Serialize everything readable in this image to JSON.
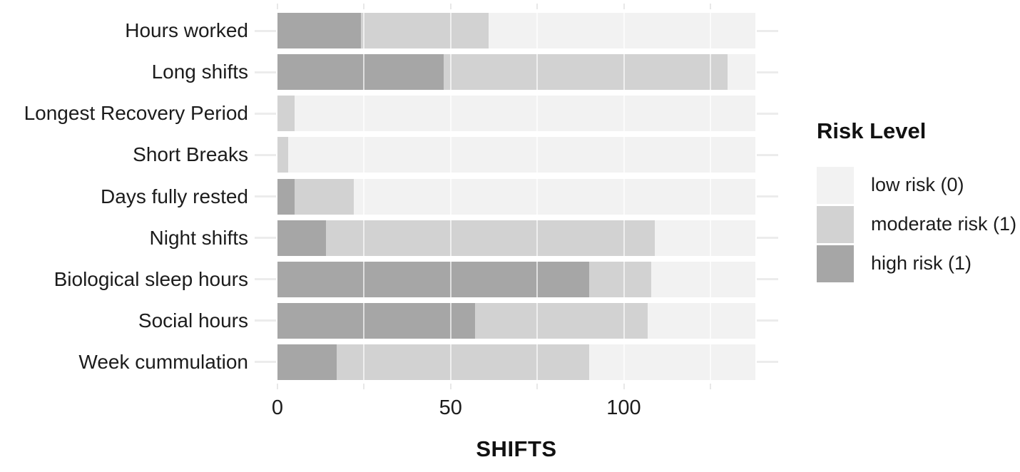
{
  "chart_data": {
    "type": "bar",
    "orientation": "horizontal",
    "stacked": true,
    "title": "",
    "xlabel": "SHIFTS",
    "ylabel": "",
    "xlim": [
      0,
      138
    ],
    "x_major_ticks": [
      0,
      50,
      100
    ],
    "x_minor_tick_interval": 25,
    "grid": "white vertical gridlines every 25 units over bars; light gray tick dashes on panel edges",
    "categories": [
      "Hours worked",
      "Long shifts",
      "Longest Recovery Period",
      "Short Breaks",
      "Days fully rested",
      "Night shifts",
      "Biological sleep hours",
      "Social hours",
      "Week cummulation"
    ],
    "series": [
      {
        "name": "high risk (1)",
        "color": "#a6a6a6",
        "values": [
          24,
          48,
          0,
          0,
          5,
          14,
          90,
          57,
          17
        ]
      },
      {
        "name": "moderate risk (1)",
        "color": "#d2d2d2",
        "values": [
          37,
          82,
          5,
          3,
          17,
          95,
          18,
          50,
          73
        ]
      },
      {
        "name": "low risk (0)",
        "color": "#f2f2f2",
        "values": [
          77,
          8,
          133,
          135,
          116,
          29,
          30,
          31,
          48
        ]
      }
    ],
    "legend": {
      "title": "Risk Level",
      "position": "right",
      "items": [
        {
          "label": "low risk (0)",
          "color": "#f2f2f2"
        },
        {
          "label": "moderate risk (1)",
          "color": "#d2d2d2"
        },
        {
          "label": "high risk (1)",
          "color": "#a6a6a6"
        }
      ]
    },
    "colors": {
      "background": "#ffffff",
      "text": "#1c1c1c",
      "tick_dash": "#ececec",
      "gridline": "#ffffff"
    }
  }
}
